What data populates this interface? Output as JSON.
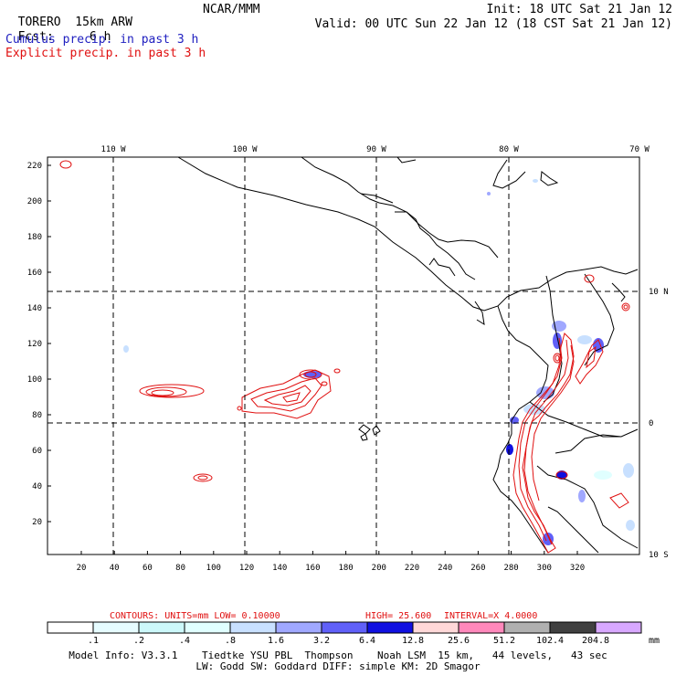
{
  "header": {
    "model": "TORERO",
    "resolution": "15km ARW",
    "org": "NCAR/MMM",
    "init": "Init: 18 UTC Sat 21 Jan 12",
    "fcst_label": "Fcst:",
    "fcst_value": "6 h",
    "valid": "Valid: 00 UTC Sun 22 Jan 12 (18 CST Sat 21 Jan 12)",
    "cumulus": "Cumulus precip. in past 3 h",
    "explicit": "Explicit precip. in past 3 h"
  },
  "map": {
    "lon_labels": [
      "110 W",
      "100 W",
      "90 W",
      "80 W",
      "70 W"
    ],
    "lat_labels": [
      "10 N",
      "0",
      "10 S"
    ],
    "y_ticks": [
      "220",
      "200",
      "180",
      "160",
      "140",
      "120",
      "100",
      "80",
      "60",
      "40",
      "20"
    ],
    "x_ticks": [
      "20",
      "40",
      "60",
      "80",
      "100",
      "120",
      "140",
      "160",
      "180",
      "200",
      "220",
      "240",
      "260",
      "280",
      "300",
      "320"
    ]
  },
  "contour_info": {
    "units": "CONTOURS:  UNITS=mm  LOW= 0.10000",
    "high": "HIGH=  25.600",
    "interval": "INTERVAL=X  4.0000"
  },
  "colorbar": {
    "labels": [
      ".1",
      ".2",
      ".4",
      ".8",
      "1.6",
      "3.2",
      "6.4",
      "12.8",
      "25.6",
      "51.2",
      "102.4",
      "204.8"
    ],
    "unit": "mm",
    "colors": [
      "#ffffff",
      "#e6fcff",
      "#ccf8fa",
      "#e0ffff",
      "#c8e0ff",
      "#a0a8ff",
      "#6060f8",
      "#1010e0",
      "#ffd8d8",
      "#ff88bb",
      "#b0b0b0",
      "#404040",
      "#d8a8ff"
    ]
  },
  "footer": {
    "line1": "Model Info: V3.3.1    Tiedtke YSU PBL  Thompson    Noah LSM  15 km,   44 levels,   43 sec",
    "line2": "LW: Godd SW: Goddard DIFF: simple KM: 2D Smagor"
  }
}
